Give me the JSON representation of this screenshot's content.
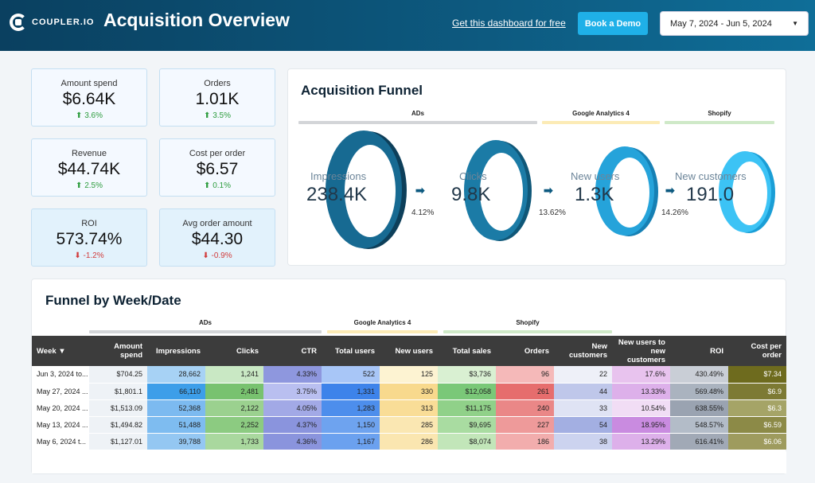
{
  "header": {
    "logo_text": "COUPLER.IO",
    "title": "Acquisition Overview",
    "free_link": "Get this dashboard for free",
    "demo_button": "Book a Demo",
    "date_range": "May 7, 2024 - Jun 5, 2024",
    "caret": "▼"
  },
  "kpis": [
    {
      "label": "Amount spend",
      "value": "$6.64K",
      "delta": "3.6%",
      "dir": "up"
    },
    {
      "label": "Orders",
      "value": "1.01K",
      "delta": "3.5%",
      "dir": "up"
    },
    {
      "label": "Revenue",
      "value": "$44.74K",
      "delta": "2.5%",
      "dir": "up"
    },
    {
      "label": "Cost per order",
      "value": "$6.57",
      "delta": "0.1%",
      "dir": "up"
    },
    {
      "label": "ROI",
      "value": "573.74%",
      "delta": "-1.2%",
      "dir": "down"
    },
    {
      "label": "Avg order amount",
      "value": "$44.30",
      "delta": "-0.9%",
      "dir": "down"
    }
  ],
  "funnel": {
    "title": "Acquisition Funnel",
    "groups": [
      "ADs",
      "Google Analytics 4",
      "Shopify"
    ],
    "stages": [
      {
        "label": "Impressions",
        "value": "238.4K"
      },
      {
        "label": "Clicks",
        "value": "9.8K"
      },
      {
        "label": "New users",
        "value": "1.3K"
      },
      {
        "label": "New customers",
        "value": "191.0"
      }
    ],
    "arrow": "➡",
    "rates": [
      "4.12%",
      "13.62%",
      "14.26%"
    ]
  },
  "table_section": {
    "title": "Funnel by Week/Date",
    "groups": [
      "ADs",
      "Google Analytics 4",
      "Shopify"
    ],
    "columns": [
      "Week ▼",
      "Amount spend",
      "Impressions",
      "Clicks",
      "CTR",
      "Total users",
      "New users",
      "Total sales",
      "Orders",
      "New customers",
      "New users to new customers",
      "ROI",
      "Cost per order"
    ],
    "rows": [
      [
        "Jun 3, 2024 to...",
        "$704.25",
        "28,662",
        "1,241",
        "4.33%",
        "522",
        "125",
        "$3,736",
        "96",
        "22",
        "17.6%",
        "430.49%",
        "$7.34"
      ],
      [
        "May 27, 2024 ...",
        "$1,801.1",
        "66,110",
        "2,481",
        "3.75%",
        "1,331",
        "330",
        "$12,058",
        "261",
        "44",
        "13.33%",
        "569.48%",
        "$6.9"
      ],
      [
        "May 20, 2024 ...",
        "$1,513.09",
        "52,368",
        "2,122",
        "4.05%",
        "1,283",
        "313",
        "$11,175",
        "240",
        "33",
        "10.54%",
        "638.55%",
        "$6.3"
      ],
      [
        "May 13, 2024 ...",
        "$1,494.82",
        "51,488",
        "2,252",
        "4.37%",
        "1,150",
        "285",
        "$9,695",
        "227",
        "54",
        "18.95%",
        "548.57%",
        "$6.59"
      ],
      [
        "May 6, 2024 t...",
        "$1,127.01",
        "39,788",
        "1,733",
        "4.36%",
        "1,167",
        "286",
        "$8,074",
        "186",
        "38",
        "13.29%",
        "616.41%",
        "$6.06"
      ]
    ],
    "cell_colors": [
      [
        "#ffffff",
        "#eef2f6",
        "#a7d2f5",
        "#c9e8c4",
        "#8e97de",
        "#a8c6f7",
        "#fdf3d2",
        "#d9f0d2",
        "#f5b9b9",
        "#eef0f8",
        "#e8c3ee",
        "#c9ced6",
        "#6e6b1e"
      ],
      [
        "#ffffff",
        "#eef2f6",
        "#3d9ee9",
        "#78c26f",
        "#b9bff0",
        "#3d83ea",
        "#f8d98d",
        "#7ac878",
        "#e66d6d",
        "#bfc7ea",
        "#ddb0ea",
        "#aab3bf",
        "#7d7a34"
      ],
      [
        "#ffffff",
        "#eef2f6",
        "#7cbaf0",
        "#9bd18f",
        "#a2a9e6",
        "#4d8eec",
        "#f9dd97",
        "#90d189",
        "#ea8787",
        "#dfe3f4",
        "#f1ddf5",
        "#9aa3b1",
        "#a5a467"
      ],
      [
        "#ffffff",
        "#eef2f6",
        "#7ebcf0",
        "#8ccb81",
        "#8a94dd",
        "#6ea3ef",
        "#fae7b2",
        "#a9dca1",
        "#ee9a9a",
        "#a3afe2",
        "#c98be0",
        "#b3bcc8",
        "#8c8a47"
      ],
      [
        "#ffffff",
        "#eef2f6",
        "#94c7f2",
        "#a9d89e",
        "#8a94dd",
        "#6ba1ef",
        "#fae6b0",
        "#c2e6b9",
        "#f2adad",
        "#ccd3ef",
        "#ddb0ea",
        "#a1a9b6",
        "#9e9b5e"
      ]
    ],
    "text_colors": [
      "#222222",
      "#222222",
      "#222222",
      "#222222",
      "#222222",
      "#222222",
      "#222222",
      "#222222",
      "#222222",
      "#222222",
      "#222222",
      "#222222",
      "#ffffff"
    ]
  }
}
